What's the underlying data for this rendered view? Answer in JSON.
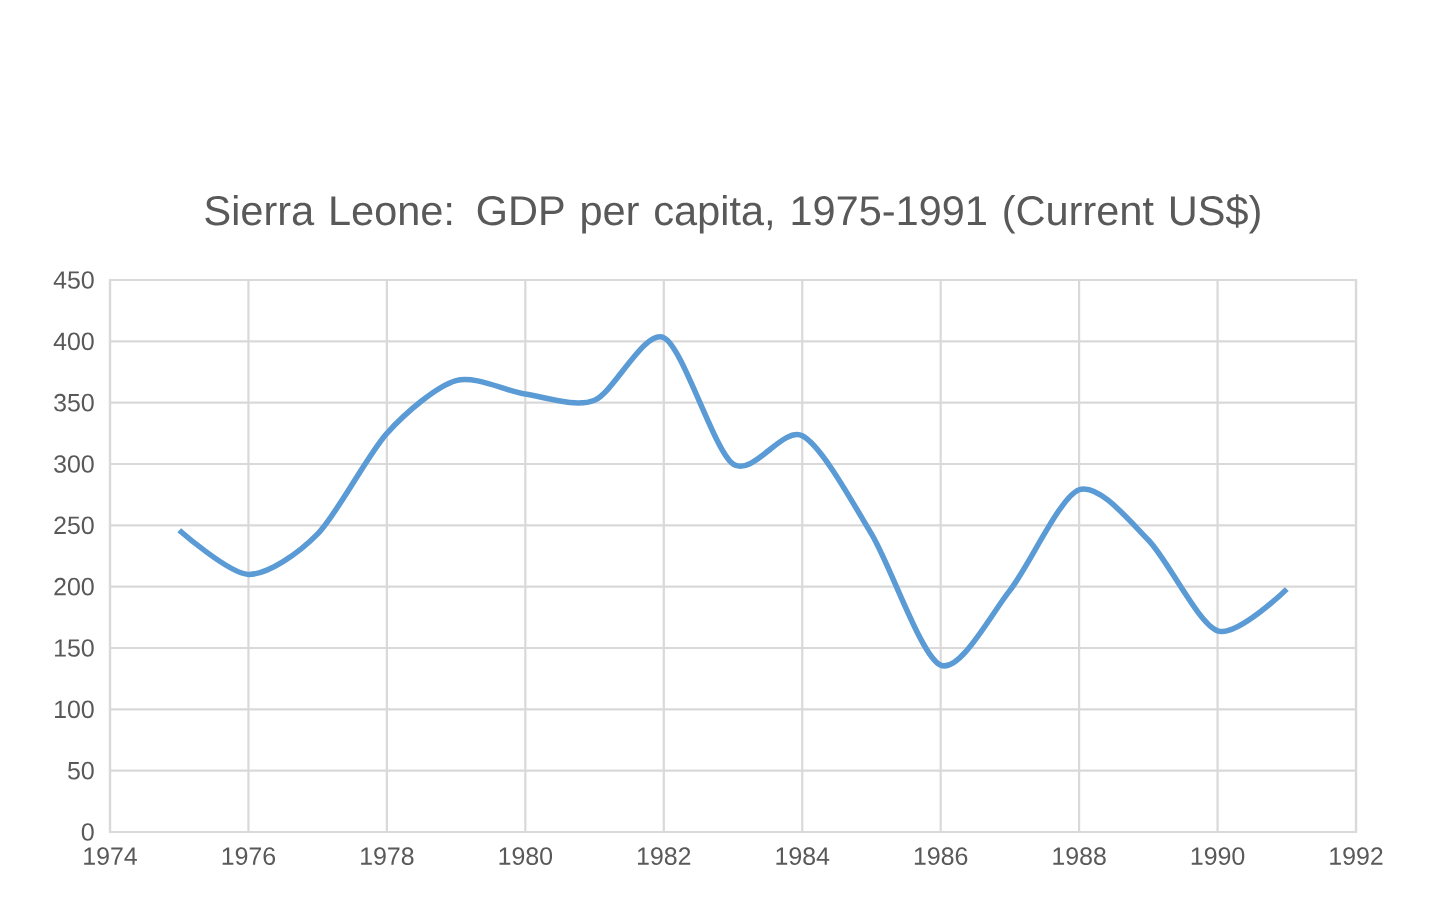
{
  "chart_data": {
    "type": "line",
    "title": "Sierra Leone: GDP per capita, 1975-1991 (Current US$)",
    "x": [
      1975,
      1976,
      1977,
      1978,
      1979,
      1980,
      1981,
      1982,
      1983,
      1984,
      1985,
      1986,
      1987,
      1988,
      1989,
      1990,
      1991
    ],
    "series": [
      {
        "color": "#5b9bd5",
        "values": [
          246,
          210,
          243,
          325,
          368,
          357,
          352,
          403,
          300,
          323,
          243,
          136,
          197,
          279,
          238,
          164,
          198
        ]
      }
    ],
    "xlim": [
      1974,
      1992
    ],
    "xticks": [
      1974,
      1976,
      1978,
      1980,
      1982,
      1984,
      1986,
      1988,
      1990,
      1992
    ],
    "ylim": [
      0,
      450
    ],
    "yticks": [
      0,
      50,
      100,
      150,
      200,
      250,
      300,
      350,
      400,
      450
    ],
    "grid": true,
    "marker": "none",
    "line_style": "solid"
  }
}
